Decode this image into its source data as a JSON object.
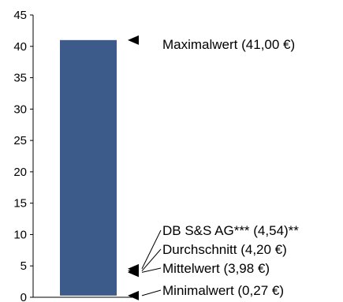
{
  "chart_data": {
    "type": "bar",
    "title": "",
    "xlabel": "",
    "ylabel": "",
    "ylim": [
      0,
      45
    ],
    "yticks": [
      0,
      5,
      10,
      15,
      20,
      25,
      30,
      35,
      40,
      45
    ],
    "bar": {
      "min": 0.27,
      "max": 41.0,
      "color": "#3c5a8a"
    },
    "annotations": [
      {
        "label": "Maximalwert (41,00 €)",
        "value": 41.0
      },
      {
        "label": "DB S&S AG*** (4,54)**",
        "value": 4.54
      },
      {
        "label": "Durchschnitt (4,20 €)",
        "value": 4.2
      },
      {
        "label": "Mittelwert (3,98 €)",
        "value": 3.98
      },
      {
        "label": "Minimalwert (0,27 €)",
        "value": 0.27
      }
    ],
    "grid": false
  }
}
